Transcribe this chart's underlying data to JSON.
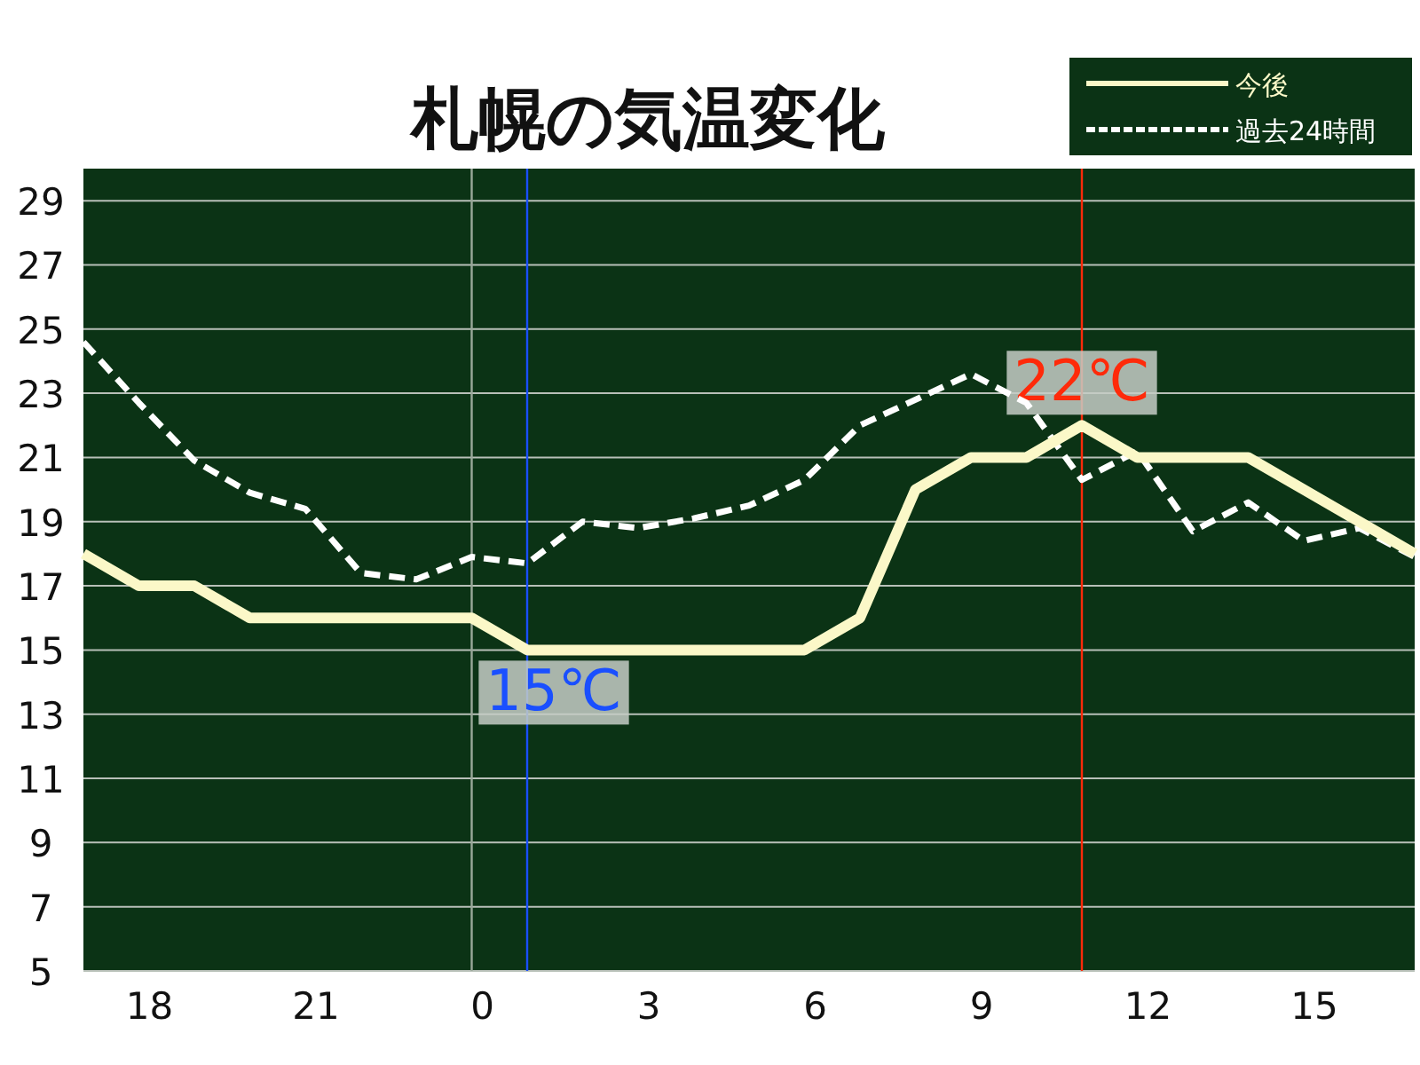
{
  "chart_data": {
    "type": "line",
    "title": "札幌の気温変化",
    "categories": [
      null,
      "18",
      null,
      null,
      "21",
      null,
      null,
      "0",
      null,
      null,
      "3",
      null,
      null,
      "6",
      null,
      null,
      "9",
      null,
      null,
      "12",
      null,
      null,
      "15",
      null,
      null
    ],
    "series": [
      {
        "name": "今後",
        "color": "#fbf8c8",
        "line_style": "solid",
        "values": [
          18,
          17,
          17,
          16,
          16,
          16,
          16,
          16,
          15,
          15,
          15,
          15,
          15,
          15,
          16,
          20,
          21,
          21,
          22,
          21,
          21,
          21,
          20,
          19,
          18
        ]
      },
      {
        "name": "過去24時間",
        "color": "#ffffff",
        "line_style": "dashed",
        "values": [
          24.6,
          22.7,
          20.9,
          19.9,
          19.4,
          17.4,
          17.2,
          17.9,
          17.7,
          19.0,
          18.8,
          19.1,
          19.5,
          20.3,
          22.0,
          22.8,
          23.6,
          22.7,
          20.3,
          21.2,
          18.7,
          19.6,
          18.4,
          18.8,
          17.9
        ]
      }
    ],
    "ylim": [
      5,
      30
    ],
    "yticks": [
      5,
      7,
      9,
      11,
      13,
      15,
      17,
      19,
      21,
      23,
      25,
      27,
      29
    ],
    "grid": "y",
    "ref_lines": [
      {
        "axis": "x",
        "value": "0",
        "color": "#9aa89a"
      }
    ],
    "annotations": [
      {
        "text": "15℃",
        "y": 15
      },
      {
        "text": "22℃",
        "y": 22
      }
    ],
    "legend": "top right"
  }
}
